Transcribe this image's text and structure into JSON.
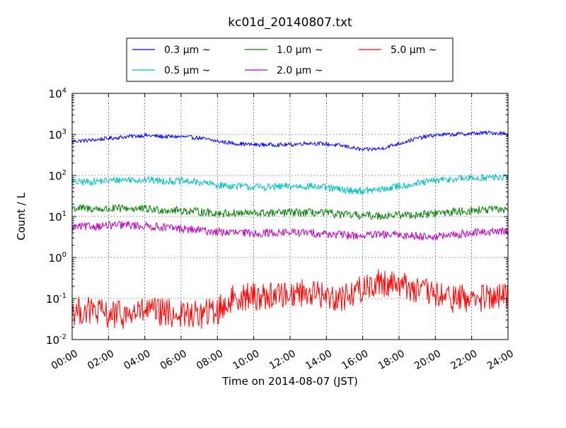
{
  "chart_data": {
    "type": "line",
    "title": "kc01d_20140807.txt",
    "xlabel": "Time on 2014-08-07 (JST)",
    "ylabel": "Count / L",
    "x_ticks": [
      "00:00",
      "02:00",
      "04:00",
      "06:00",
      "08:00",
      "10:00",
      "12:00",
      "14:00",
      "16:00",
      "18:00",
      "20:00",
      "22:00",
      "24:00"
    ],
    "xlim": [
      "2014-08-07T00:00",
      "2014-08-08T00:00"
    ],
    "yscale": "log",
    "ylim": [
      0.01,
      10000
    ],
    "y_ticks": [
      {
        "base": "10",
        "exp": "-2"
      },
      {
        "base": "10",
        "exp": "-1"
      },
      {
        "base": "10",
        "exp": "0"
      },
      {
        "base": "10",
        "exp": "1"
      },
      {
        "base": "10",
        "exp": "2"
      },
      {
        "base": "10",
        "exp": "3"
      },
      {
        "base": "10",
        "exp": "4"
      }
    ],
    "grid": true,
    "legend_placement": "above plot, centered, 3 columns",
    "series": [
      {
        "name": "0.3 μm ~",
        "color": "#0000ff",
        "x": [
          "00:00",
          "01:00",
          "02:00",
          "03:00",
          "04:00",
          "05:00",
          "06:00",
          "07:00",
          "08:00",
          "09:00",
          "10:00",
          "11:00",
          "12:00",
          "13:00",
          "14:00",
          "15:00",
          "16:00",
          "17:00",
          "18:00",
          "19:00",
          "20:00",
          "21:00",
          "22:00",
          "23:00",
          "24:00"
        ],
        "values": [
          680,
          720,
          800,
          880,
          950,
          880,
          880,
          820,
          680,
          600,
          560,
          560,
          560,
          620,
          580,
          520,
          420,
          450,
          600,
          800,
          970,
          1000,
          1050,
          1100,
          1050
        ]
      },
      {
        "name": "0.5 μm ~",
        "color": "#00bfbf",
        "x": [
          "00:00",
          "01:00",
          "02:00",
          "03:00",
          "04:00",
          "05:00",
          "06:00",
          "07:00",
          "08:00",
          "09:00",
          "10:00",
          "11:00",
          "12:00",
          "13:00",
          "14:00",
          "15:00",
          "16:00",
          "17:00",
          "18:00",
          "19:00",
          "20:00",
          "21:00",
          "22:00",
          "23:00",
          "24:00"
        ],
        "values": [
          68,
          70,
          75,
          80,
          78,
          74,
          72,
          68,
          58,
          55,
          52,
          52,
          54,
          55,
          50,
          44,
          42,
          45,
          55,
          63,
          75,
          82,
          85,
          90,
          88
        ]
      },
      {
        "name": "1.0 μm ~",
        "color": "#008000",
        "x": [
          "00:00",
          "01:00",
          "02:00",
          "03:00",
          "04:00",
          "05:00",
          "06:00",
          "07:00",
          "08:00",
          "09:00",
          "10:00",
          "11:00",
          "12:00",
          "13:00",
          "14:00",
          "15:00",
          "16:00",
          "17:00",
          "18:00",
          "19:00",
          "20:00",
          "21:00",
          "22:00",
          "23:00",
          "24:00"
        ],
        "values": [
          16,
          15.5,
          15,
          16,
          15,
          14.5,
          14,
          13,
          12,
          12,
          12,
          12,
          12.5,
          12.5,
          12,
          11,
          10.5,
          10.5,
          11,
          11,
          12,
          13,
          14,
          14.5,
          15
        ]
      },
      {
        "name": "2.0 μm ~",
        "color": "#bf00bf",
        "x": [
          "00:00",
          "01:00",
          "02:00",
          "03:00",
          "04:00",
          "05:00",
          "06:00",
          "07:00",
          "08:00",
          "09:00",
          "10:00",
          "11:00",
          "12:00",
          "13:00",
          "14:00",
          "15:00",
          "16:00",
          "17:00",
          "18:00",
          "19:00",
          "20:00",
          "21:00",
          "22:00",
          "23:00",
          "24:00"
        ],
        "values": [
          5.5,
          5.7,
          6,
          6.2,
          5.8,
          5.5,
          5,
          4.6,
          4.2,
          4,
          3.9,
          4,
          4.1,
          4,
          3.8,
          3.5,
          3.4,
          3.6,
          3.5,
          3.4,
          3.2,
          3.5,
          4,
          4.2,
          4.4
        ]
      },
      {
        "name": "5.0 μm ~",
        "color": "#ff0000",
        "x": [
          "00:00",
          "01:00",
          "02:00",
          "03:00",
          "04:00",
          "05:00",
          "06:00",
          "07:00",
          "08:00",
          "09:00",
          "10:00",
          "11:00",
          "12:00",
          "13:00",
          "14:00",
          "15:00",
          "16:00",
          "17:00",
          "18:00",
          "19:00",
          "20:00",
          "21:00",
          "22:00",
          "23:00",
          "24:00"
        ],
        "values": [
          0.05,
          0.05,
          0.04,
          0.04,
          0.05,
          0.045,
          0.04,
          0.04,
          0.05,
          0.11,
          0.11,
          0.12,
          0.13,
          0.15,
          0.11,
          0.11,
          0.18,
          0.25,
          0.24,
          0.16,
          0.12,
          0.1,
          0.1,
          0.1,
          0.11
        ]
      }
    ]
  }
}
